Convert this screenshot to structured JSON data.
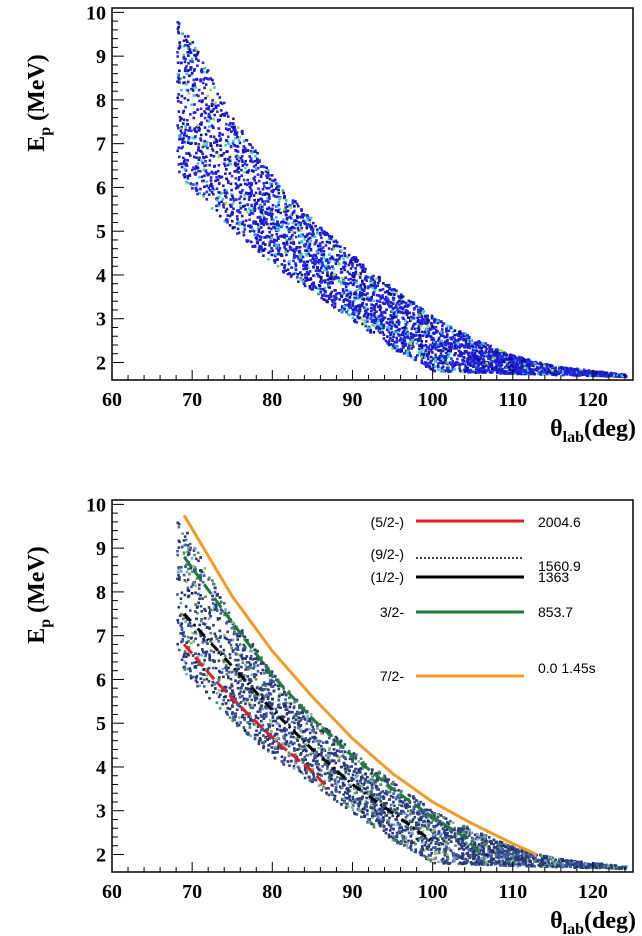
{
  "chart_data": [
    {
      "type": "heatmap",
      "panel": "top",
      "title": "",
      "xlabel": {
        "main": "θ",
        "sub": "lab",
        "rest": "(deg)"
      },
      "ylabel": {
        "main": "E",
        "sub": "p",
        "rest": " (MeV)"
      },
      "xlim": [
        60,
        125
      ],
      "ylim": [
        1.6,
        10.1
      ],
      "x_ticks": [
        "60",
        "70",
        "80",
        "90",
        "100",
        "110",
        "120"
      ],
      "y_ticks": [
        "2",
        "3",
        "4",
        "5",
        "6",
        "7",
        "8",
        "9",
        "10"
      ],
      "band": {
        "upper": [
          [
            68.5,
            9.9
          ],
          [
            75,
            7.7
          ],
          [
            80,
            6.3
          ],
          [
            85,
            5.3
          ],
          [
            90,
            4.5
          ],
          [
            95,
            3.75
          ],
          [
            100,
            3.1
          ],
          [
            105,
            2.6
          ],
          [
            110,
            2.2
          ],
          [
            115,
            1.95
          ],
          [
            124,
            1.75
          ]
        ],
        "lower": [
          [
            68,
            6.3
          ],
          [
            70,
            5.9
          ],
          [
            75,
            5.0
          ],
          [
            80,
            4.2
          ],
          [
            85,
            3.6
          ],
          [
            88,
            3.2
          ],
          [
            95,
            2.3
          ],
          [
            100,
            1.8
          ],
          [
            124,
            1.7
          ]
        ]
      },
      "palette": [
        "#1c1ccc",
        "#2a2af0",
        "#0a0a99",
        "#34c0ff",
        "#3dd3a0",
        "#9ddf3a"
      ]
    },
    {
      "type": "heatmap",
      "panel": "bottom",
      "title": "",
      "xlabel": {
        "main": "θ",
        "sub": "lab",
        "rest": "(deg)"
      },
      "ylabel": {
        "main": "E",
        "sub": "p",
        "rest": " (MeV)"
      },
      "xlim": [
        60,
        125
      ],
      "ylim": [
        1.6,
        10.1
      ],
      "x_ticks": [
        "60",
        "70",
        "80",
        "90",
        "100",
        "110",
        "120"
      ],
      "y_ticks": [
        "2",
        "3",
        "4",
        "5",
        "6",
        "7",
        "8",
        "9",
        "10"
      ],
      "band": {
        "upper": [
          [
            68.5,
            9.7
          ],
          [
            75,
            7.5
          ],
          [
            80,
            6.2
          ],
          [
            85,
            5.2
          ],
          [
            90,
            4.4
          ],
          [
            95,
            3.7
          ],
          [
            100,
            3.05
          ],
          [
            105,
            2.6
          ],
          [
            110,
            2.2
          ],
          [
            115,
            1.95
          ],
          [
            124,
            1.75
          ]
        ],
        "lower": [
          [
            68,
            6.3
          ],
          [
            70,
            5.9
          ],
          [
            75,
            5.0
          ],
          [
            80,
            4.2
          ],
          [
            85,
            3.6
          ],
          [
            88,
            3.2
          ],
          [
            95,
            2.3
          ],
          [
            100,
            1.8
          ],
          [
            124,
            1.7
          ]
        ]
      },
      "palette": [
        "#2b3a7a",
        "#3b5aa8",
        "#4d8a6a",
        "#79a7c8",
        "#8fbf6a",
        "#1a2456"
      ],
      "series": [
        {
          "name": "7/2-",
          "energy": "0.0  1.45s",
          "color": "#f39a2a",
          "dash": "solid",
          "points": [
            [
              69,
              9.75
            ],
            [
              75,
              7.9
            ],
            [
              80,
              6.65
            ],
            [
              85,
              5.6
            ],
            [
              90,
              4.65
            ],
            [
              95,
              3.85
            ],
            [
              100,
              3.2
            ],
            [
              105,
              2.7
            ],
            [
              110,
              2.25
            ],
            [
              113,
              2.0
            ]
          ]
        },
        {
          "name": "3/2-",
          "energy": "853.7",
          "color": "#1f7a3a",
          "dash": "dashed",
          "points": [
            [
              69,
              8.8
            ],
            [
              75,
              7.3
            ],
            [
              80,
              6.1
            ],
            [
              85,
              5.1
            ],
            [
              90,
              4.25
            ],
            [
              95,
              3.5
            ],
            [
              100,
              2.85
            ],
            [
              104,
              2.4
            ],
            [
              106,
              2.0
            ]
          ]
        },
        {
          "name": "(1/2-)",
          "energy": "1363",
          "color": "#000000",
          "dash": "dashdot",
          "points": [
            [
              69,
              7.5
            ],
            [
              75,
              6.3
            ],
            [
              80,
              5.3
            ],
            [
              85,
              4.4
            ],
            [
              90,
              3.6
            ],
            [
              95,
              2.95
            ],
            [
              100,
              2.3
            ]
          ]
        },
        {
          "name": "(9/2-)",
          "energy": "1560.9",
          "color": "#000000",
          "dash": "dotted",
          "points": []
        },
        {
          "name": "(5/2-)",
          "energy": "2004.6",
          "color": "#e02020",
          "dash": "dashed",
          "points": [
            [
              69,
              6.8
            ],
            [
              73,
              5.95
            ],
            [
              77,
              5.2
            ],
            [
              81,
              4.5
            ],
            [
              85,
              3.9
            ],
            [
              87,
              3.5
            ]
          ]
        }
      ]
    }
  ]
}
